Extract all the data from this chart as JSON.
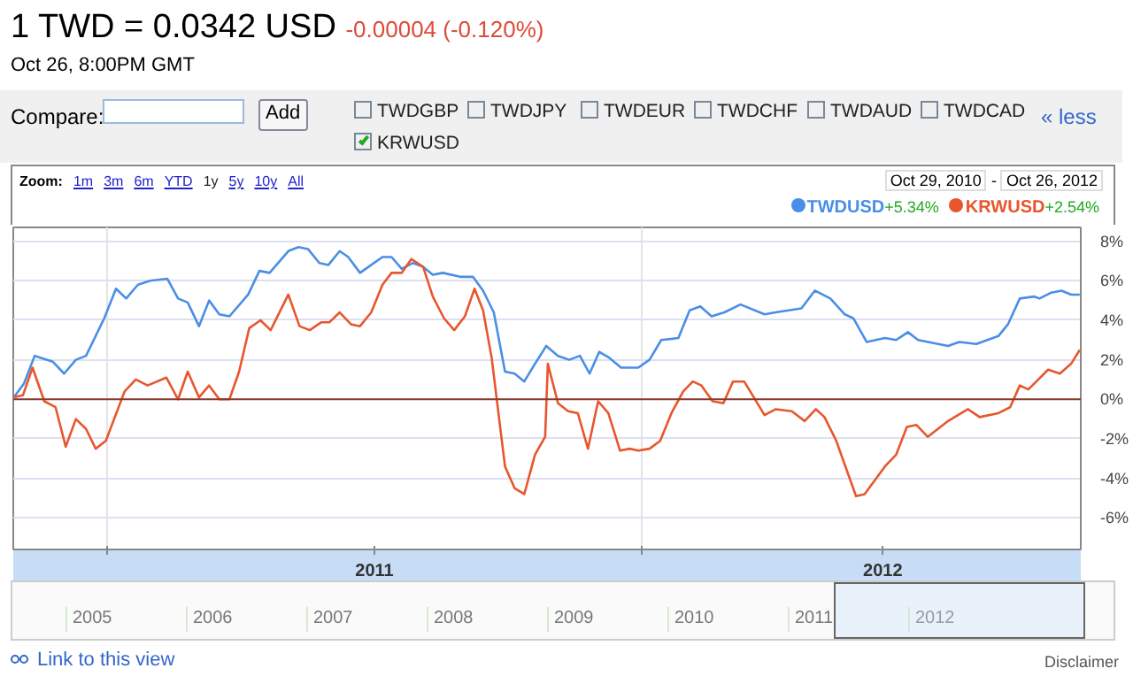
{
  "chart_data": {
    "type": "line",
    "title": "1 TWD = 0.0342 USD",
    "subtitle": "-0.00004 (-0.120%)",
    "annotations": [
      "Oct 26, 8:00PM GMT",
      "Compare:",
      "Add",
      "TWDGBP",
      "TWDJPY",
      "TWDEUR",
      "TWDCHF",
      "TWDAUD",
      "TWDCAD",
      "KRWUSD",
      "« less",
      "Zoom:",
      "1m",
      "3m",
      "6m",
      "YTD",
      "1y",
      "5y",
      "10y",
      "All",
      "Oct 29, 2010",
      "-",
      "Oct 26, 2012",
      "+5.34%",
      "+2.54%",
      "2005",
      "2006",
      "2007",
      "2008",
      "2009",
      "2010",
      "2011",
      "2012",
      "Link to this view",
      "Disclaimer"
    ],
    "xlim": [
      2010.825,
      2012.82
    ],
    "ylim": [
      -7.6,
      8.7
    ],
    "xticks": [
      {
        "value": 2011,
        "label": null
      },
      {
        "value": 2011.5,
        "label": "2011"
      },
      {
        "value": 2012,
        "label": null
      },
      {
        "value": 2012.45,
        "label": "2012"
      }
    ],
    "yticks": [
      {
        "value": -6,
        "label": "-6%"
      },
      {
        "value": -4,
        "label": "-4%"
      },
      {
        "value": -2,
        "label": "-2%"
      },
      {
        "value": 0,
        "label": "0%"
      },
      {
        "value": 2,
        "label": "2%"
      },
      {
        "value": 4,
        "label": "4%"
      },
      {
        "value": 6,
        "label": "6%"
      },
      {
        "value": 8,
        "label": "8%"
      }
    ],
    "grid": true,
    "legend": "top right",
    "ref_lines": [
      {
        "axis": "y",
        "value": 0,
        "label": null,
        "color": "#8b3a2a"
      }
    ],
    "series": [
      {
        "name": "TWDUSD",
        "color": "#4a8ee6",
        "x": [
          2010.826,
          2010.845,
          2010.865,
          2010.899,
          2010.92,
          2010.942,
          2010.961,
          2010.995,
          2011.017,
          2011.036,
          2011.058,
          2011.081,
          2011.113,
          2011.133,
          2011.151,
          2011.172,
          2011.191,
          2011.21,
          2011.229,
          2011.264,
          2011.285,
          2011.304,
          2011.339,
          2011.358,
          2011.376,
          2011.397,
          2011.414,
          2011.435,
          2011.451,
          2011.473,
          2011.494,
          2011.515,
          2011.532,
          2011.551,
          2011.572,
          2011.591,
          2011.609,
          2011.628,
          2011.66,
          2011.684,
          2011.703,
          2011.723,
          2011.744,
          2011.762,
          2011.78,
          2011.8,
          2011.821,
          2011.843,
          2011.864,
          2011.884,
          2011.902,
          2011.92,
          2011.939,
          2011.961,
          2011.993,
          2012.014,
          2012.036,
          2012.068,
          2012.089,
          2012.109,
          2012.13,
          2012.154,
          2012.184,
          2012.229,
          2012.25,
          2012.298,
          2012.323,
          2012.352,
          2012.379,
          2012.395,
          2012.42,
          2012.454,
          2012.475,
          2012.497,
          2012.516,
          2012.572,
          2012.593,
          2012.625,
          2012.666,
          2012.684,
          2012.706,
          2012.733,
          2012.743,
          2012.765,
          2012.784,
          2012.802,
          2012.818
        ],
        "values": [
          0.1,
          0.8,
          2.2,
          1.9,
          1.3,
          2.0,
          2.2,
          4.1,
          5.6,
          5.1,
          5.8,
          6.0,
          6.1,
          5.1,
          4.9,
          3.7,
          5.0,
          4.3,
          4.2,
          5.3,
          6.5,
          6.4,
          7.5,
          7.7,
          7.6,
          6.9,
          6.8,
          7.5,
          7.2,
          6.4,
          6.8,
          7.2,
          7.2,
          6.6,
          6.9,
          6.7,
          6.3,
          6.4,
          6.2,
          6.2,
          5.5,
          4.4,
          1.4,
          1.3,
          0.9,
          1.8,
          2.7,
          2.2,
          2.0,
          2.2,
          1.3,
          2.4,
          2.1,
          1.6,
          1.6,
          2.0,
          3.0,
          3.1,
          4.5,
          4.7,
          4.2,
          4.4,
          4.8,
          4.3,
          4.4,
          4.6,
          5.5,
          5.1,
          4.3,
          4.1,
          2.9,
          3.1,
          3.0,
          3.4,
          3.0,
          2.7,
          2.9,
          2.8,
          3.2,
          3.8,
          5.1,
          5.2,
          5.1,
          5.4,
          5.5,
          5.3,
          5.3
        ]
      },
      {
        "name": "KRWUSD",
        "color": "#e8562e",
        "x": [
          2010.826,
          2010.843,
          2010.861,
          2010.883,
          2010.904,
          2010.923,
          2010.942,
          2010.961,
          2010.979,
          2010.998,
          2011.033,
          2011.054,
          2011.076,
          2011.111,
          2011.133,
          2011.151,
          2011.172,
          2011.191,
          2011.21,
          2011.229,
          2011.247,
          2011.266,
          2011.287,
          2011.306,
          2011.339,
          2011.36,
          2011.379,
          2011.401,
          2011.416,
          2011.435,
          2011.456,
          2011.473,
          2011.494,
          2011.515,
          2011.532,
          2011.551,
          2011.569,
          2011.591,
          2011.609,
          2011.63,
          2011.649,
          2011.669,
          2011.687,
          2011.703,
          2011.719,
          2011.744,
          2011.762,
          2011.78,
          2011.8,
          2011.819,
          2011.824,
          2011.843,
          2011.862,
          2011.88,
          2011.899,
          2011.918,
          2011.937,
          2011.959,
          2011.977,
          2011.993,
          2012.014,
          2012.034,
          2012.055,
          2012.077,
          2012.095,
          2012.111,
          2012.132,
          2012.152,
          2012.17,
          2012.191,
          2012.229,
          2012.25,
          2012.28,
          2012.304,
          2012.325,
          2012.341,
          2012.363,
          2012.4,
          2012.416,
          2012.454,
          2012.475,
          2012.495,
          2012.513,
          2012.534,
          2012.572,
          2012.609,
          2012.631,
          2012.666,
          2012.688,
          2012.706,
          2012.722,
          2012.759,
          2012.781,
          2012.802,
          2012.818
        ],
        "values": [
          0.1,
          0.2,
          1.6,
          -0.1,
          -0.4,
          -2.4,
          -1.0,
          -1.5,
          -2.5,
          -2.1,
          0.4,
          1.0,
          0.7,
          1.1,
          0.0,
          1.4,
          0.1,
          0.7,
          0.0,
          0.0,
          1.4,
          3.6,
          4.0,
          3.5,
          5.3,
          3.7,
          3.5,
          3.9,
          3.9,
          4.4,
          3.8,
          3.7,
          4.4,
          5.8,
          6.4,
          6.4,
          7.1,
          6.7,
          5.2,
          4.1,
          3.5,
          4.2,
          5.6,
          4.5,
          2.1,
          -3.4,
          -4.5,
          -4.8,
          -2.8,
          -1.9,
          1.8,
          -0.2,
          -0.6,
          -0.7,
          -2.5,
          -0.1,
          -0.7,
          -2.6,
          -2.5,
          -2.6,
          -2.5,
          -2.1,
          -0.7,
          0.4,
          0.9,
          0.7,
          -0.1,
          -0.2,
          0.9,
          0.9,
          -0.8,
          -0.5,
          -0.6,
          -1.1,
          -0.5,
          -0.9,
          -2.1,
          -4.9,
          -4.8,
          -3.4,
          -2.8,
          -1.4,
          -1.3,
          -1.9,
          -1.1,
          -0.5,
          -0.9,
          -0.7,
          -0.4,
          0.7,
          0.5,
          1.5,
          1.3,
          1.8,
          2.5
        ]
      }
    ]
  }
}
